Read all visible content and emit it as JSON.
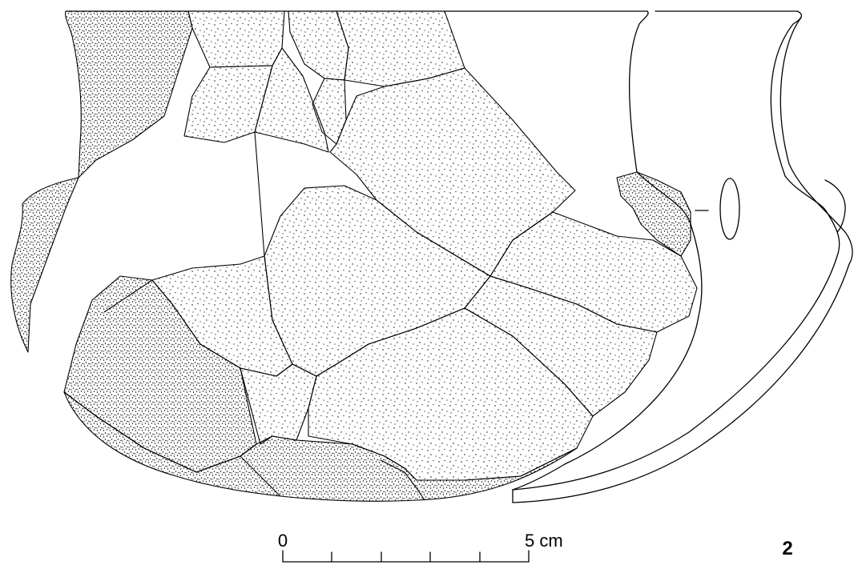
{
  "figure_number": "2",
  "scale_bar": {
    "start_label": "0",
    "end_label": "5 cm",
    "divisions": 5
  },
  "colors": {
    "ink": "#000000",
    "paper": "#ffffff"
  }
}
